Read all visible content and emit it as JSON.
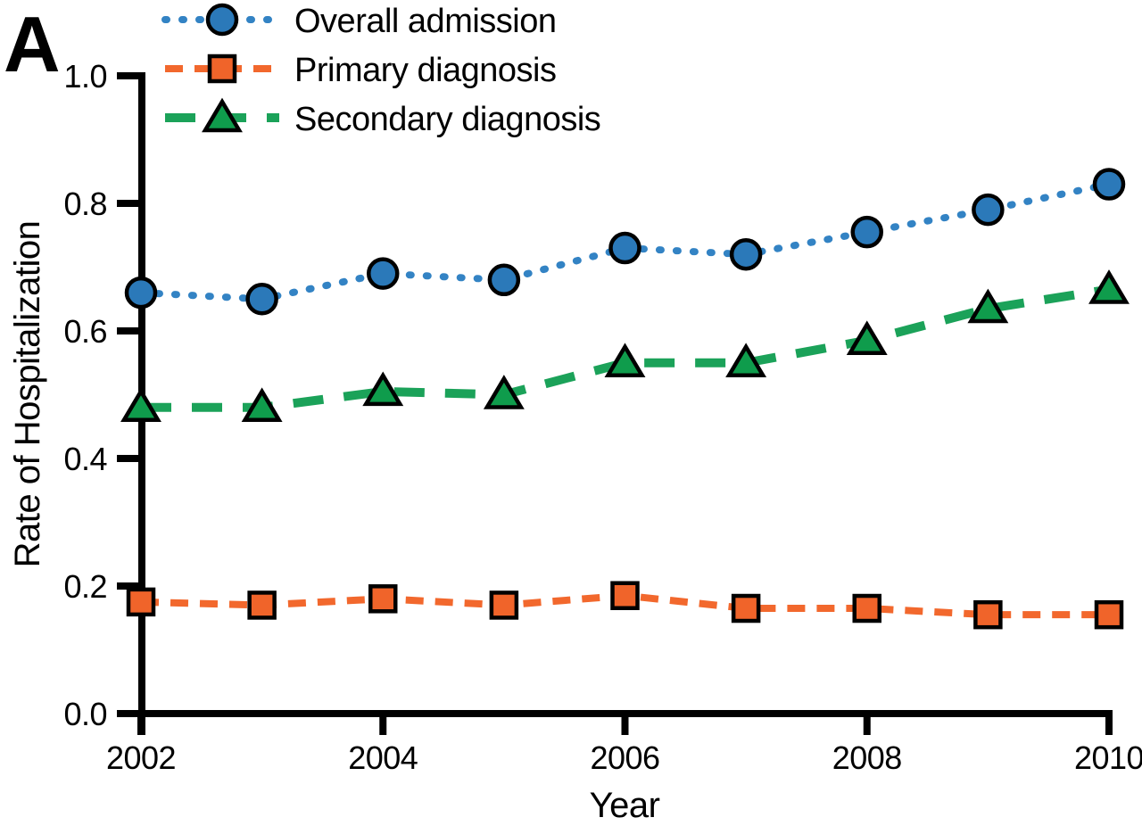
{
  "panel_label": "A",
  "chart_data": {
    "type": "line",
    "title": "",
    "xlabel": "Year",
    "ylabel": "Rate of Hospitalization",
    "x": [
      2002,
      2003,
      2004,
      2005,
      2006,
      2007,
      2008,
      2009,
      2010
    ],
    "x_tick_labels": [
      "2002",
      "2004",
      "2006",
      "2008",
      "2010"
    ],
    "y_tick_labels": [
      "0.0",
      "0.2",
      "0.4",
      "0.6",
      "0.8",
      "1.0"
    ],
    "xlim": [
      2002,
      2010
    ],
    "ylim": [
      0,
      1.0
    ],
    "grid": false,
    "legend_position": "top-left",
    "axis_color": "#000000",
    "series": [
      {
        "name": "Overall admission",
        "marker": "circle",
        "line_style": "dotted",
        "line_color": "#3383C4",
        "fill": "#2B79B9",
        "values": [
          0.66,
          0.65,
          0.69,
          0.68,
          0.73,
          0.72,
          0.755,
          0.79,
          0.83
        ]
      },
      {
        "name": "Primary diagnosis",
        "marker": "square",
        "line_style": "dashed",
        "line_color": "#F2682D",
        "fill": "#F0642A",
        "values": [
          0.175,
          0.17,
          0.18,
          0.17,
          0.185,
          0.165,
          0.165,
          0.155,
          0.155
        ]
      },
      {
        "name": "Secondary diagnosis",
        "marker": "triangle",
        "line_style": "long-dash",
        "line_color": "#1BA259",
        "fill": "#0F9C4C",
        "values": [
          0.48,
          0.48,
          0.505,
          0.5,
          0.55,
          0.55,
          0.585,
          0.635,
          0.665
        ]
      }
    ]
  }
}
